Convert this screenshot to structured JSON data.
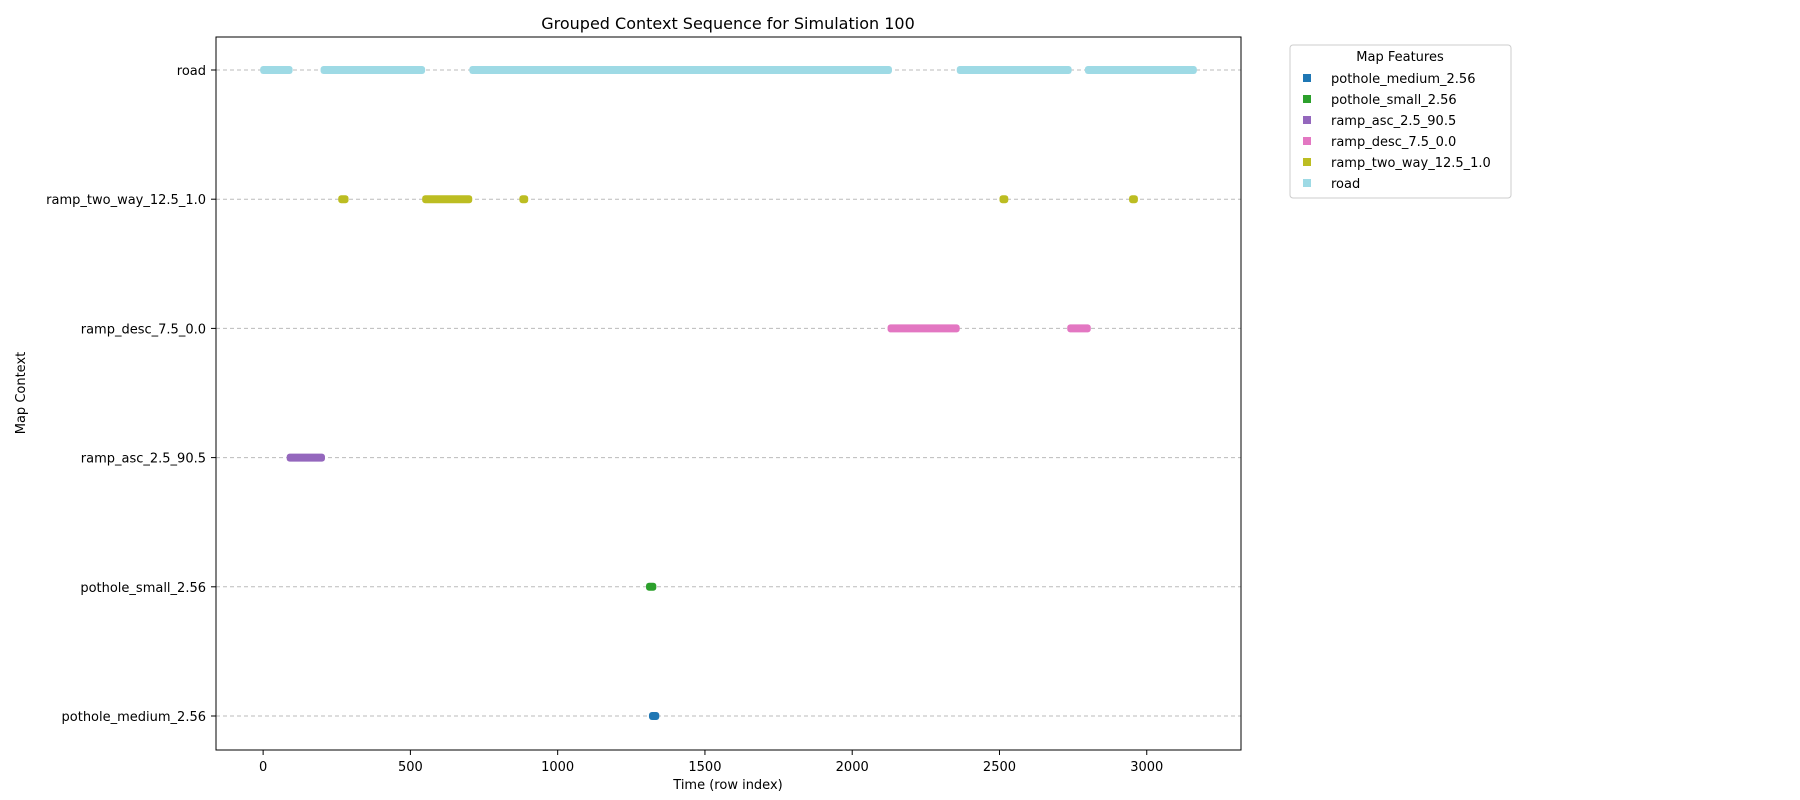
{
  "chart_data": {
    "type": "scatter",
    "title": "Grouped Context Sequence for Simulation 100",
    "xlabel": "Time (row index)",
    "ylabel": "Map Context",
    "xlim": [
      -160,
      3320
    ],
    "xticks": [
      0,
      500,
      1000,
      1500,
      2000,
      2500,
      3000
    ],
    "grid": "horizontal dashed",
    "legend": {
      "title": "Map Features",
      "placement": "outside right"
    },
    "categories": [
      "pothole_medium_2.56",
      "pothole_small_2.56",
      "ramp_asc_2.5_90.5",
      "ramp_desc_7.5_0.0",
      "ramp_two_way_12.5_1.0",
      "road"
    ],
    "series": [
      {
        "name": "pothole_medium_2.56",
        "color": "#1f77b4",
        "segments": [
          [
            1310,
            1345
          ]
        ]
      },
      {
        "name": "pothole_small_2.56",
        "color": "#2ca02c",
        "segments": [
          [
            1300,
            1335
          ]
        ]
      },
      {
        "name": "ramp_asc_2.5_90.5",
        "color": "#9467bd",
        "segments": [
          [
            80,
            210
          ]
        ]
      },
      {
        "name": "ramp_desc_7.5_0.0",
        "color": "#e377c2",
        "segments": [
          [
            2120,
            2365
          ],
          [
            2730,
            2810
          ]
        ]
      },
      {
        "name": "ramp_two_way_12.5_1.0",
        "color": "#bcbd22",
        "segments": [
          [
            255,
            290
          ],
          [
            540,
            710
          ],
          [
            870,
            900
          ],
          [
            2500,
            2530
          ],
          [
            2940,
            2970
          ]
        ]
      },
      {
        "name": "road",
        "color": "#9edae5",
        "segments": [
          [
            -10,
            100
          ],
          [
            195,
            550
          ],
          [
            700,
            2135
          ],
          [
            2355,
            2745
          ],
          [
            2790,
            3170
          ]
        ]
      }
    ]
  }
}
